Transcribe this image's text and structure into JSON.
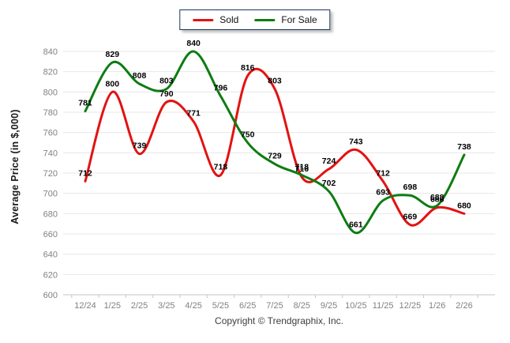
{
  "chart_data": {
    "type": "line",
    "x": [
      "12/24",
      "1/25",
      "2/25",
      "3/25",
      "4/25",
      "5/25",
      "6/25",
      "7/25",
      "8/25",
      "9/25",
      "10/25",
      "11/25",
      "12/25",
      "1/26",
      "2/26"
    ],
    "series": [
      {
        "name": "Sold",
        "color": "#e31212",
        "values": [
          712,
          800,
          739,
          790,
          771,
          718,
          816,
          803,
          716,
          724,
          743,
          712,
          669,
          686,
          680
        ]
      },
      {
        "name": "For Sale",
        "color": "#0e7c12",
        "values": [
          781,
          829,
          808,
          803,
          840,
          796,
          750,
          729,
          718,
          702,
          661,
          693,
          698,
          688,
          738
        ]
      }
    ],
    "title": "",
    "xlabel": "",
    "ylabel": "Average Price (in $,000)",
    "ylim": [
      600,
      840
    ],
    "yticks": [
      600,
      620,
      640,
      660,
      680,
      700,
      720,
      740,
      760,
      780,
      800,
      820,
      840
    ],
    "grid": true,
    "smooth": true,
    "point_labels": true,
    "legend_position": "top-center"
  },
  "footer": {
    "copyright": "Copyright © Trendgraphix, Inc."
  }
}
